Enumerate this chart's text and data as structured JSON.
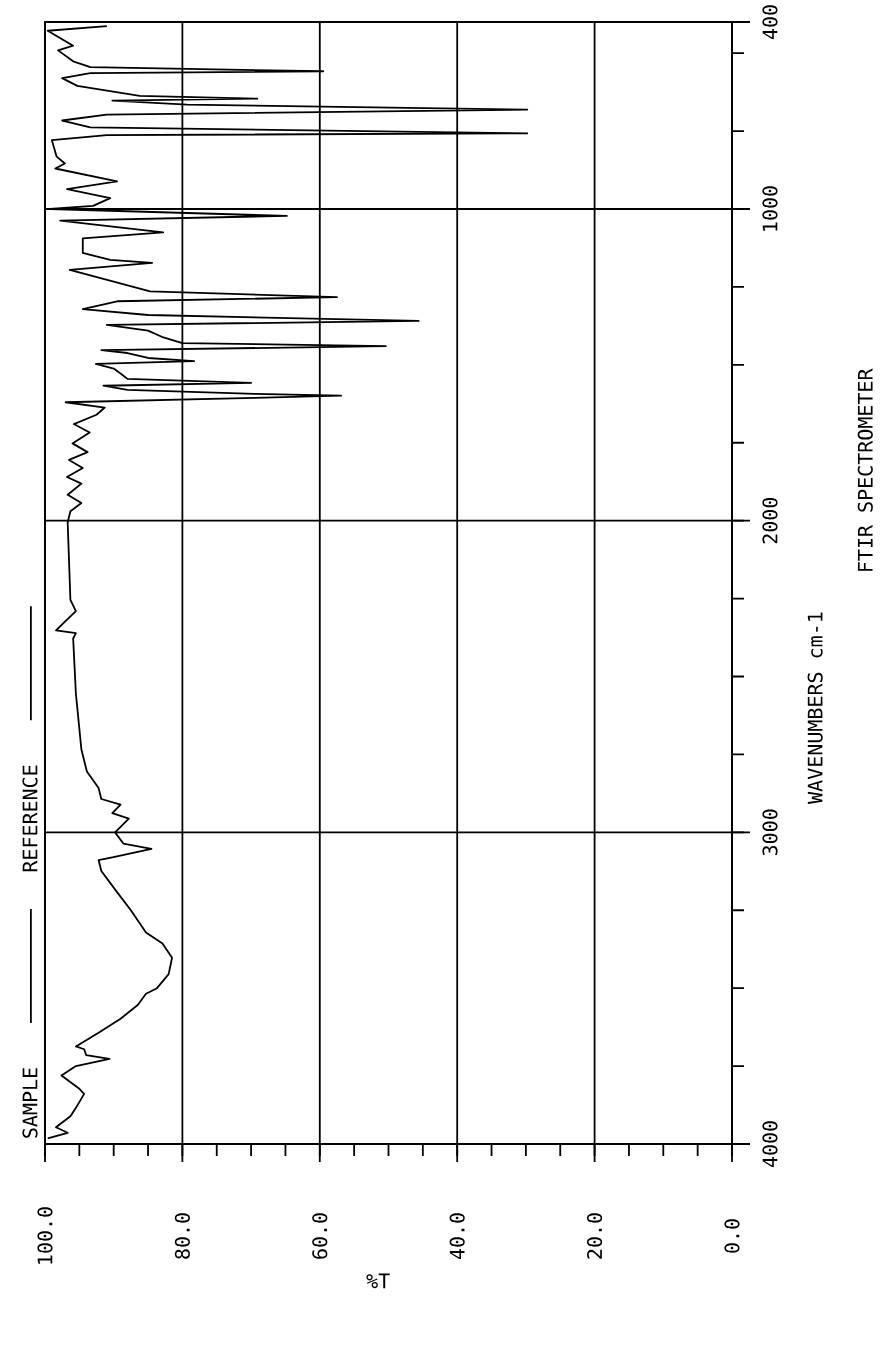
{
  "chart_data": {
    "type": "line",
    "xlabel": "%T",
    "ylabel": "WAVENUMBERS cm-1",
    "annotations": [
      "SAMPLE",
      "REFERENCE",
      "FTIR SPECTROMETER"
    ],
    "xlim": [
      100,
      0
    ],
    "xticks": [
      {
        "value": 100,
        "label": "100.0"
      },
      {
        "value": 95,
        "label": null
      },
      {
        "value": 90,
        "label": null
      },
      {
        "value": 85,
        "label": null
      },
      {
        "value": 80,
        "label": "80.0"
      },
      {
        "value": 75,
        "label": null
      },
      {
        "value": 70,
        "label": null
      },
      {
        "value": 65,
        "label": null
      },
      {
        "value": 60,
        "label": "60.0"
      },
      {
        "value": 55,
        "label": null
      },
      {
        "value": 50,
        "label": null
      },
      {
        "value": 45,
        "label": null
      },
      {
        "value": 40,
        "label": "40.0"
      },
      {
        "value": 35,
        "label": null
      },
      {
        "value": 30,
        "label": null
      },
      {
        "value": 25,
        "label": null
      },
      {
        "value": 20,
        "label": "20.0"
      },
      {
        "value": 15,
        "label": null
      },
      {
        "value": 10,
        "label": null
      },
      {
        "value": 5,
        "label": null
      },
      {
        "value": 0,
        "label": "0.0"
      }
    ],
    "ylim": [
      4000,
      400
    ],
    "yticks": [
      4000,
      {
        "value": 3750,
        "label": null
      },
      {
        "value": 3500,
        "label": null
      },
      {
        "value": 3250,
        "label": null
      },
      3000,
      {
        "value": 2750,
        "label": null
      },
      {
        "value": 2500,
        "label": null
      },
      {
        "value": 2250,
        "label": null
      },
      2000,
      {
        "value": 1750,
        "label": null
      },
      {
        "value": 1500,
        "label": null
      },
      {
        "value": 1250,
        "label": null
      },
      1000,
      {
        "value": 750,
        "label": null
      },
      {
        "value": 500,
        "label": null
      },
      400
    ],
    "grid": true,
    "line_style": "solid",
    "color": "#000000",
    "x": [
      99.6,
      96.7,
      98.4,
      96.3,
      95.5,
      94.3,
      95.1,
      97.6,
      95.5,
      90.6,
      94.0,
      94.3,
      95.5,
      92.2,
      89.0,
      86.5,
      85.3,
      83.7,
      82.0,
      81.5,
      82.9,
      85.3,
      87.5,
      89.4,
      91.8,
      92.2,
      90.2,
      84.5,
      88.6,
      89.8,
      87.8,
      90.2,
      89.0,
      91.8,
      92.2,
      93.9,
      94.7,
      95.5,
      95.9,
      95.5,
      98.4,
      96.3,
      95.5,
      96.3,
      96.7,
      96.3,
      94.7,
      96.7,
      94.7,
      96.8,
      94.5,
      96.5,
      93.8,
      96.0,
      93.5,
      95.8,
      92.5,
      91.3,
      97.0,
      69.5,
      56.9,
      69.5,
      88.0,
      91.5,
      70.0,
      88.0,
      89.0,
      90.0,
      92.6,
      78.3,
      85.0,
      88.0,
      91.8,
      50.4,
      80.0,
      83.0,
      85.0,
      91.0,
      45.6,
      85.0,
      94.5,
      89.5,
      57.5,
      84.7,
      96.4,
      84.4,
      90.5,
      94.5,
      94.5,
      82.8,
      97.8,
      64.8,
      99.3,
      93.0,
      90.5,
      96.8,
      89.5,
      98.5,
      97.1,
      98.3,
      99.0,
      91.0,
      29.8,
      93.4,
      97.5,
      91.0,
      29.8,
      79.3,
      90.2,
      69.1,
      86.2,
      95.3,
      97.5,
      93.4,
      59.5,
      93.4,
      95.9,
      98.1,
      95.9,
      99.6,
      91.0
    ],
    "values": [
      3982,
      3964,
      3946,
      3911,
      3884,
      3839,
      3821,
      3780,
      3750,
      3727,
      3715,
      3696,
      3687,
      3643,
      3598,
      3554,
      3518,
      3500,
      3455,
      3402,
      3357,
      3321,
      3250,
      3195,
      3124,
      3089,
      3080,
      3053,
      3036,
      3000,
      2956,
      2938,
      2911,
      2893,
      2858,
      2805,
      2734,
      2556,
      2378,
      2361,
      2352,
      2307,
      2290,
      2254,
      2005,
      1970,
      1943,
      1917,
      1881,
      1860,
      1831,
      1805,
      1780,
      1752,
      1717,
      1690,
      1660,
      1637,
      1620,
      1606,
      1599,
      1593,
      1580,
      1567,
      1558,
      1545,
      1528,
      1512,
      1497,
      1488,
      1478,
      1462,
      1453,
      1440,
      1430,
      1410,
      1390,
      1372,
      1359,
      1340,
      1321,
      1296,
      1283,
      1264,
      1195,
      1173,
      1163,
      1141,
      1094,
      1075,
      1037,
      1022,
      1000,
      990,
      965,
      936,
      911,
      870,
      854,
      832,
      779,
      763,
      757,
      738,
      716,
      697,
      681,
      665,
      652,
      646,
      637,
      605,
      580,
      564,
      558,
      545,
      526,
      491,
      476,
      428,
      413
    ]
  }
}
